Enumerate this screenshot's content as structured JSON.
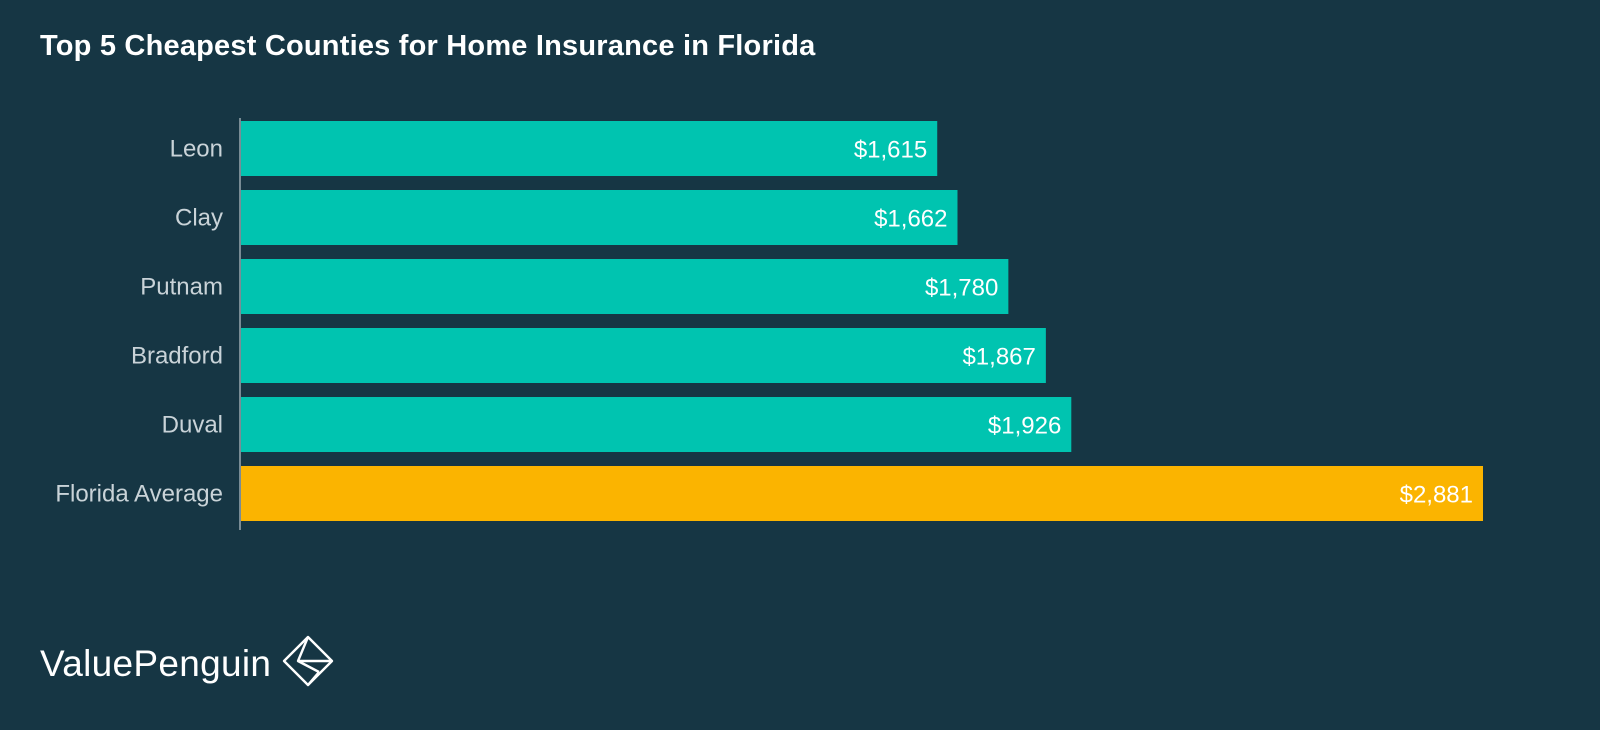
{
  "chart_data": {
    "type": "bar",
    "orientation": "horizontal",
    "title": "Top 5 Cheapest Counties for Home Insurance in Florida",
    "categories": [
      "Leon",
      "Clay",
      "Putnam",
      "Bradford",
      "Duval",
      "Florida Average"
    ],
    "values": [
      1615,
      1662,
      1780,
      1867,
      1926,
      2881
    ],
    "value_labels": [
      "$1,615",
      "$1,662",
      "$1,780",
      "$1,867",
      "$1,926",
      "$2,881"
    ],
    "bar_colors": [
      "#00c4b0",
      "#00c4b0",
      "#00c4b0",
      "#00c4b0",
      "#00c4b0",
      "#fbb400"
    ],
    "xlabel": "",
    "ylabel": "",
    "xlim": [
      0,
      2881
    ],
    "grid": false,
    "legend": "none"
  },
  "brand": {
    "name": "ValuePenguin",
    "logo_icon": "valuepenguin-diamond-logo-icon"
  },
  "colors": {
    "background": "#163644",
    "bar": "#00c4b0",
    "highlight_bar": "#fbb400",
    "text": "#ffffff",
    "category_text": "#c9d3d8"
  }
}
